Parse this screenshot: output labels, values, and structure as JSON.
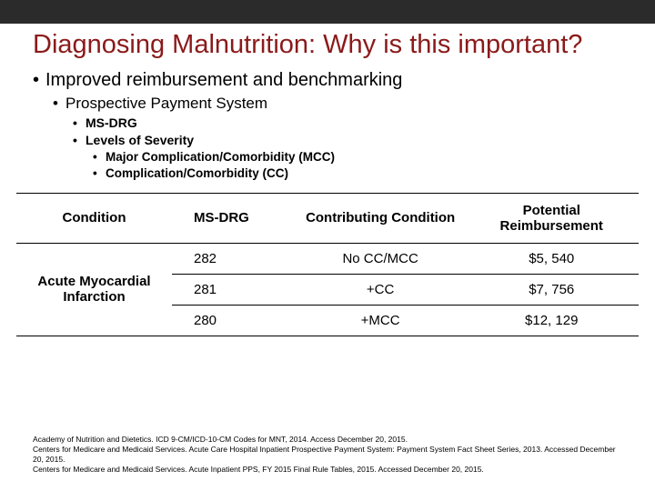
{
  "title": "Diagnosing Malnutrition: Why is this important?",
  "bullets": {
    "l1": "Improved reimbursement and benchmarking",
    "l2": "Prospective Payment System",
    "l3a": "MS-DRG",
    "l3b": "Levels of Severity",
    "l4a": "Major Complication/Comorbidity (MCC)",
    "l4b": "Complication/Comorbidity (CC)"
  },
  "table": {
    "headers": {
      "c0": "Condition",
      "c1": "MS-DRG",
      "c2": "Contributing Condition",
      "c3": "Potential Reimbursement"
    },
    "condition": "Acute Myocardial Infarction",
    "rows": [
      {
        "drg": "282",
        "contrib": "No CC/MCC",
        "reimb": "$5, 540"
      },
      {
        "drg": "281",
        "contrib": "+CC",
        "reimb": "$7, 756"
      },
      {
        "drg": "280",
        "contrib": "+MCC",
        "reimb": "$12, 129"
      }
    ]
  },
  "refs": {
    "r1": "Academy of Nutrition and Dietetics. ICD 9-CM/ICD-10-CM Codes for MNT, 2014. Access December 20, 2015.",
    "r2": "Centers for Medicare and Medicaid Services. Acute Care Hospital Inpatient Prospective Payment System: Payment System Fact Sheet Series, 2013. Accessed December 20, 2015.",
    "r3": "Centers for Medicare and Medicaid Services. Acute Inpatient PPS, FY 2015 Final Rule Tables, 2015. Accessed December 20, 2015."
  },
  "colors": {
    "titleColor": "#8b1a1a",
    "topbar": "#2b2b2b",
    "border": "#000000",
    "background": "#ffffff"
  }
}
